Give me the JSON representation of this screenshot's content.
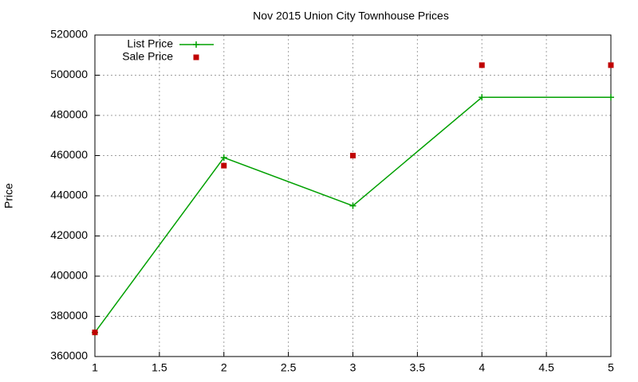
{
  "chart_data": {
    "type": "line",
    "title": "Nov 2015 Union City Townhouse Prices",
    "y_label": "Price",
    "x": [
      1,
      2,
      3,
      4,
      5
    ],
    "series": [
      {
        "name": "List Price",
        "color": "#00a000",
        "style": "linespoints",
        "values": [
          372000,
          459000,
          435000,
          489000,
          489000
        ]
      },
      {
        "name": "Sale Price",
        "color": "#c00000",
        "style": "points",
        "values": [
          372000,
          455000,
          460000,
          505000,
          505000
        ]
      }
    ],
    "xlim": [
      1,
      5
    ],
    "xticks": [
      1,
      1.5,
      2,
      2.5,
      3,
      3.5,
      4,
      4.5,
      5
    ],
    "ylim": [
      360000,
      520000
    ],
    "yticks": [
      360000,
      380000,
      400000,
      420000,
      440000,
      460000,
      480000,
      500000,
      520000
    ],
    "grid": true,
    "legend": "top left"
  }
}
